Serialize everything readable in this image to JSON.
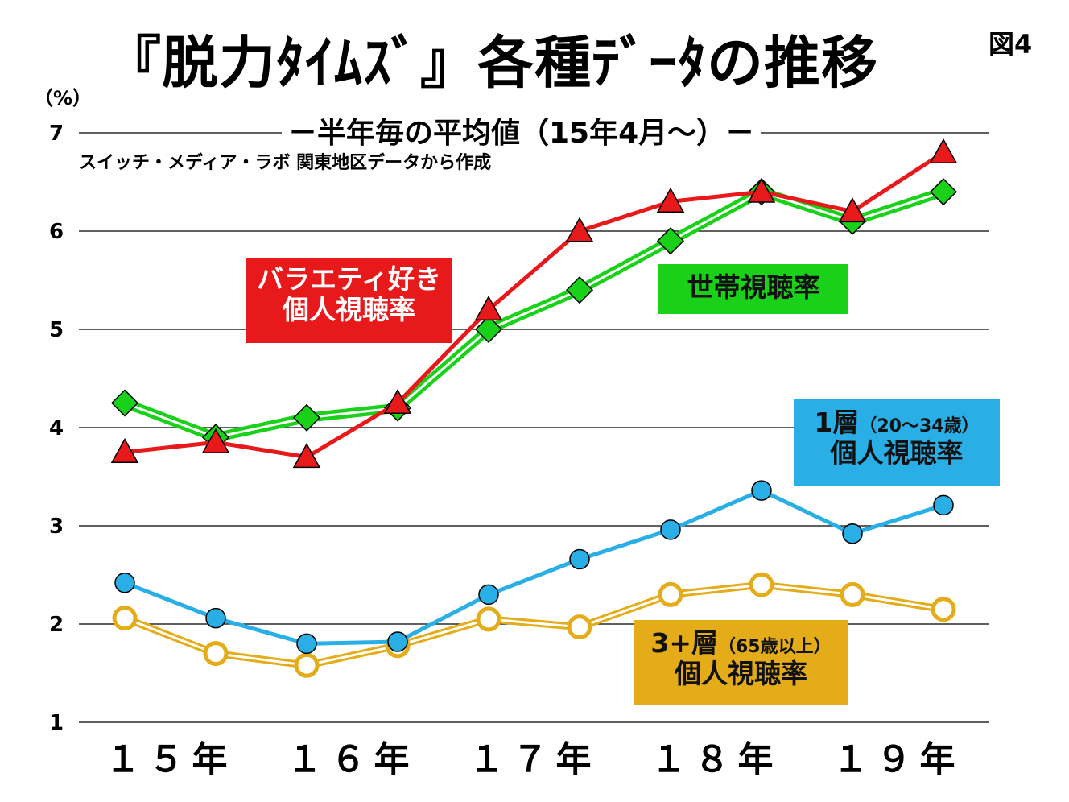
{
  "title": "『脱力ﾀｲﾑｽﾞ』各種ﾃﾞｰﾀの推移",
  "figure_label": "図4",
  "unit": "（%）",
  "subtitle": "－半年毎の平均値（15年4月～）－",
  "source": "スイッチ・メディア・ラボ 関東地区データから作成",
  "colors": {
    "variety": "#e8191b",
    "household": "#1ad11a",
    "layer1": "#2aaee6",
    "layer3": "#e3ac18"
  },
  "chart_data": {
    "type": "line",
    "title": "『脱力ﾀｲﾑｽﾞ』各種ﾃﾞｰﾀの推移",
    "subtitle": "－半年毎の平均値（15年4月～）－",
    "ylabel": "（%）",
    "ylim": [
      1,
      7
    ],
    "yticks": [
      1,
      2,
      3,
      4,
      5,
      6,
      7
    ],
    "x_labels": [
      "１５年",
      "１６年",
      "１７年",
      "１８年",
      "１９年"
    ],
    "grid": true,
    "series": [
      {
        "name": "バラエティ好き個人視聴率",
        "marker": "triangle",
        "values": [
          3.75,
          3.85,
          3.7,
          4.25,
          5.2,
          6.0,
          6.3,
          6.4,
          6.2,
          6.8
        ]
      },
      {
        "name": "世帯視聴率",
        "marker": "diamond",
        "values": [
          4.25,
          3.9,
          4.1,
          4.2,
          5.0,
          5.4,
          5.9,
          6.4,
          6.1,
          6.4
        ]
      },
      {
        "name": "1層（20～34歳）個人視聴率",
        "marker": "circle",
        "values": [
          2.42,
          2.06,
          1.8,
          1.82,
          2.3,
          2.66,
          2.96,
          3.36,
          2.92,
          3.21
        ]
      },
      {
        "name": "3+層（65歳以上）個人視聴率",
        "marker": "open-circle",
        "values": [
          2.06,
          1.7,
          1.58,
          1.78,
          2.05,
          1.97,
          2.3,
          2.4,
          2.3,
          2.15
        ]
      }
    ]
  },
  "labels": {
    "variety": {
      "line1": "バラエティ好き",
      "line2": "個人視聴率"
    },
    "household": {
      "line1": "世帯視聴率"
    },
    "layer1": {
      "line1a": "1層",
      "line1b": "（20～34歳）",
      "line2": "個人視聴率"
    },
    "layer3": {
      "line1a": "3+層",
      "line1b": "（65歳以上）",
      "line2": "個人視聴率"
    }
  }
}
